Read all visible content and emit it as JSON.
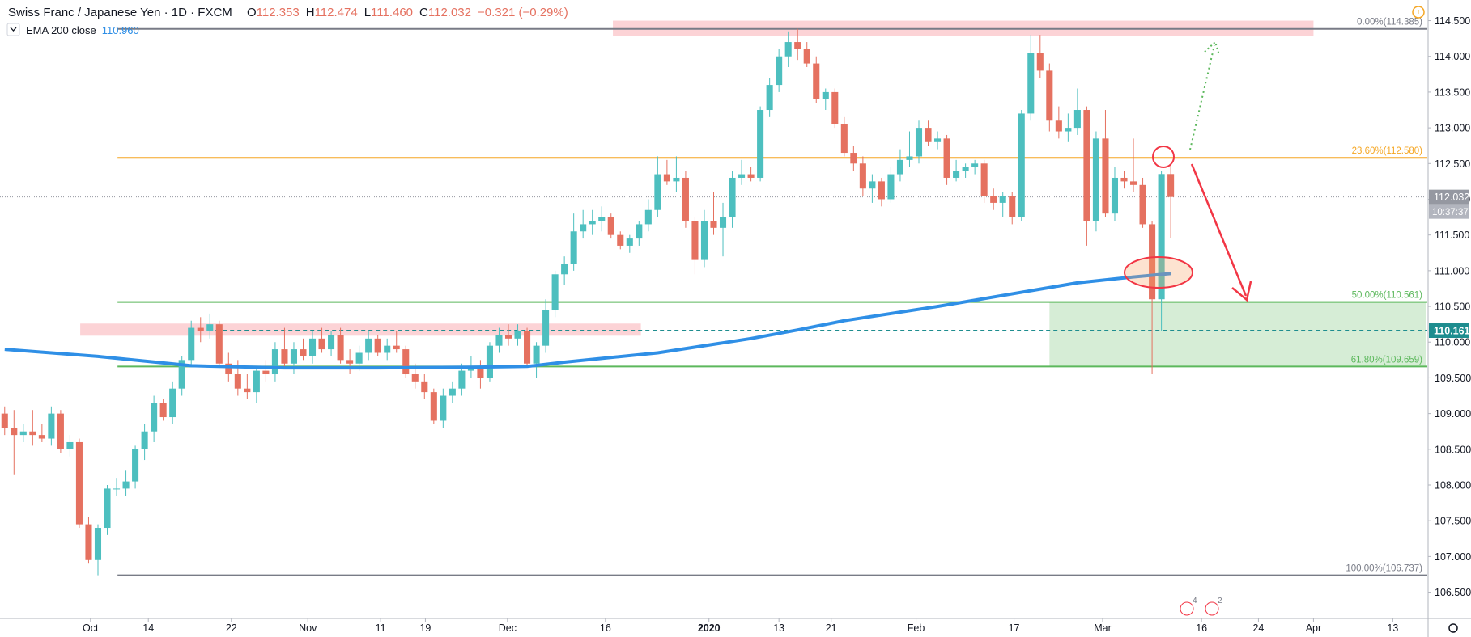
{
  "header": {
    "symbol": "Swiss Franc / Japanese Yen · 1D · FXCM",
    "ohlc": [
      {
        "label": "O",
        "value": "112.353"
      },
      {
        "label": "H",
        "value": "112.474"
      },
      {
        "label": "L",
        "value": "111.460"
      },
      {
        "label": "C",
        "value": "112.032"
      }
    ],
    "change": "−0.321 (−0.29%)",
    "indicator": {
      "name": "EMA 200 close",
      "value": "110.960"
    }
  },
  "event_badges": [
    "4",
    "2"
  ],
  "chart_data": {
    "type": "candlestick",
    "xlim": [
      -0.5,
      152.5
    ],
    "xticks": [
      {
        "value": 9.2,
        "label": "Oct"
      },
      {
        "value": 15.4,
        "label": "14"
      },
      {
        "value": 24.3,
        "label": "22"
      },
      {
        "value": 32.5,
        "label": "Nov"
      },
      {
        "value": 40.3,
        "label": "11"
      },
      {
        "value": 45.1,
        "label": "19"
      },
      {
        "value": 53.9,
        "label": "Dec"
      },
      {
        "value": 64.4,
        "label": "16"
      },
      {
        "value": 75.5,
        "label": "2020"
      },
      {
        "value": 83,
        "label": "13"
      },
      {
        "value": 88.6,
        "label": "21"
      },
      {
        "value": 97.7,
        "label": "Feb"
      },
      {
        "value": 108.2,
        "label": "17"
      },
      {
        "value": 117.7,
        "label": "Mar"
      },
      {
        "value": 128.3,
        "label": "16"
      },
      {
        "value": 134.4,
        "label": "24"
      },
      {
        "value": 140.3,
        "label": "Apr"
      },
      {
        "value": 148.8,
        "label": "13"
      }
    ],
    "ylim": [
      106.133,
      114.789
    ],
    "yticks": [
      {
        "value": 106.5,
        "label": "106.500"
      },
      {
        "value": 107,
        "label": "107.000"
      },
      {
        "value": 107.5,
        "label": "107.500"
      },
      {
        "value": 108,
        "label": "108.000"
      },
      {
        "value": 108.5,
        "label": "108.500"
      },
      {
        "value": 109,
        "label": "109.000"
      },
      {
        "value": 109.5,
        "label": "109.500"
      },
      {
        "value": 110,
        "label": "110.000"
      },
      {
        "value": 110.5,
        "label": "110.500"
      },
      {
        "value": 111,
        "label": "111.000"
      },
      {
        "value": 111.5,
        "label": "111.500"
      },
      {
        "value": 112,
        "label": "112.000"
      },
      {
        "value": 112.5,
        "label": "112.500"
      },
      {
        "value": 113,
        "label": "113.000"
      },
      {
        "value": 113.5,
        "label": "113.500"
      },
      {
        "value": 114,
        "label": "114.000"
      },
      {
        "value": 114.5,
        "label": "114.500"
      }
    ],
    "grid": false,
    "up_color": "#4dbfbf",
    "down_color": "#e57160",
    "open": [
      109.0,
      108.8,
      108.7,
      108.75,
      108.7,
      108.65,
      109.0,
      108.5,
      108.6,
      107.45,
      106.95,
      107.4,
      107.95,
      107.95,
      108.05,
      108.5,
      108.75,
      109.15,
      108.95,
      109.35,
      109.75,
      110.2,
      110.15,
      110.25,
      109.7,
      109.55,
      109.35,
      109.3,
      109.6,
      109.55,
      109.9,
      109.7,
      109.9,
      109.8,
      110.05,
      109.9,
      110.1,
      109.75,
      109.7,
      109.85,
      110.05,
      109.85,
      109.95,
      109.9,
      109.55,
      109.45,
      109.3,
      108.9,
      109.25,
      109.35,
      109.6,
      109.65,
      109.5,
      109.95,
      110.1,
      110.05,
      110.15,
      109.7,
      109.95,
      110.45,
      110.95,
      111.1,
      111.55,
      111.65,
      111.7,
      111.75,
      111.5,
      111.35,
      111.45,
      111.65,
      111.85,
      112.35,
      112.25,
      112.3,
      111.7,
      111.15,
      111.7,
      111.6,
      111.75,
      112.3,
      112.35,
      112.3,
      113.25,
      113.6,
      114.0,
      114.2,
      114.1,
      113.9,
      113.4,
      113.5,
      113.05,
      112.65,
      112.5,
      112.15,
      112.25,
      112.0,
      112.35,
      112.55,
      112.6,
      113.0,
      112.8,
      112.85,
      112.3,
      112.4,
      112.45,
      112.5,
      112.05,
      111.95,
      112.05,
      111.75,
      113.2,
      114.05,
      113.8,
      113.1,
      112.95,
      113.0,
      113.25,
      111.7,
      112.85,
      111.8,
      112.3,
      112.25,
      112.2,
      111.65,
      110.6,
      112.353
    ],
    "high": [
      109.1,
      109.05,
      108.85,
      109.05,
      108.85,
      109.1,
      109.05,
      108.7,
      108.65,
      107.55,
      107.45,
      108.0,
      108.1,
      108.2,
      108.55,
      108.85,
      109.25,
      109.2,
      109.45,
      109.8,
      110.3,
      110.35,
      110.4,
      110.3,
      109.85,
      109.75,
      109.55,
      109.65,
      109.75,
      110.0,
      110.2,
      110.0,
      110.05,
      110.15,
      110.2,
      110.15,
      110.2,
      109.9,
      109.95,
      110.15,
      110.1,
      110.05,
      110.15,
      109.95,
      109.7,
      109.55,
      109.35,
      109.35,
      109.45,
      109.7,
      109.8,
      109.75,
      110.0,
      110.2,
      110.25,
      110.25,
      110.2,
      110.0,
      110.6,
      111.0,
      111.2,
      111.8,
      111.85,
      111.85,
      111.9,
      111.8,
      111.55,
      111.5,
      111.7,
      112.0,
      112.6,
      112.55,
      112.6,
      112.4,
      111.75,
      111.85,
      112.1,
      111.95,
      112.4,
      112.55,
      112.45,
      113.3,
      113.7,
      114.1,
      114.35,
      114.385,
      114.2,
      114.0,
      113.55,
      113.55,
      113.15,
      112.75,
      112.6,
      112.35,
      112.3,
      112.45,
      112.7,
      112.95,
      113.1,
      113.1,
      112.95,
      112.9,
      112.55,
      112.5,
      112.55,
      112.55,
      112.15,
      112.1,
      112.1,
      113.25,
      114.3,
      114.3,
      113.9,
      113.3,
      113.2,
      113.55,
      113.3,
      112.95,
      113.25,
      112.45,
      112.4,
      112.85,
      112.3,
      111.7,
      112.4,
      112.474
    ],
    "low": [
      108.7,
      108.15,
      108.6,
      108.55,
      108.6,
      108.55,
      108.45,
      108.4,
      107.4,
      106.9,
      106.737,
      107.3,
      107.85,
      107.85,
      107.95,
      108.35,
      108.6,
      108.9,
      108.85,
      109.25,
      109.65,
      110.0,
      110.05,
      109.65,
      109.45,
      109.25,
      109.2,
      109.15,
      109.45,
      109.45,
      109.65,
      109.55,
      109.75,
      109.7,
      109.85,
      109.8,
      109.7,
      109.55,
      109.6,
      109.75,
      109.8,
      109.75,
      109.85,
      109.5,
      109.35,
      109.2,
      108.85,
      108.8,
      109.15,
      109.25,
      109.5,
      109.35,
      109.45,
      109.85,
      109.95,
      109.95,
      109.65,
      109.5,
      109.85,
      110.35,
      110.8,
      111.0,
      111.45,
      111.5,
      111.55,
      111.45,
      111.3,
      111.25,
      111.35,
      111.55,
      111.75,
      112.2,
      112.1,
      111.6,
      110.95,
      111.05,
      111.5,
      111.2,
      111.6,
      112.2,
      112.25,
      112.25,
      113.15,
      113.5,
      113.85,
      113.95,
      113.85,
      113.35,
      113.25,
      113.0,
      112.6,
      112.4,
      112.05,
      111.95,
      111.9,
      111.95,
      112.25,
      112.45,
      112.5,
      112.75,
      112.7,
      112.2,
      112.25,
      112.3,
      112.35,
      111.95,
      111.85,
      111.75,
      111.65,
      111.7,
      113.1,
      113.7,
      112.95,
      112.85,
      112.8,
      112.9,
      111.35,
      111.55,
      111.75,
      111.7,
      112.15,
      112.1,
      111.6,
      109.55,
      110.15,
      111.46
    ],
    "close": [
      108.8,
      108.7,
      108.75,
      108.7,
      108.65,
      109.0,
      108.5,
      108.6,
      107.45,
      106.95,
      107.4,
      107.95,
      107.95,
      108.05,
      108.5,
      108.75,
      109.15,
      108.95,
      109.35,
      109.75,
      110.2,
      110.15,
      110.25,
      109.7,
      109.55,
      109.35,
      109.3,
      109.6,
      109.55,
      109.9,
      109.7,
      109.9,
      109.8,
      110.05,
      109.9,
      110.1,
      109.75,
      109.7,
      109.85,
      110.05,
      109.85,
      109.95,
      109.9,
      109.55,
      109.45,
      109.3,
      108.9,
      109.25,
      109.35,
      109.6,
      109.65,
      109.5,
      109.95,
      110.1,
      110.05,
      110.15,
      109.7,
      109.95,
      110.45,
      110.95,
      111.1,
      111.55,
      111.65,
      111.7,
      111.75,
      111.5,
      111.35,
      111.45,
      111.65,
      111.85,
      112.35,
      112.25,
      112.3,
      111.7,
      111.15,
      111.7,
      111.6,
      111.75,
      112.3,
      112.35,
      112.3,
      113.25,
      113.6,
      114.0,
      114.2,
      114.1,
      113.9,
      113.4,
      113.5,
      113.05,
      112.65,
      112.5,
      112.15,
      112.25,
      112.0,
      112.35,
      112.55,
      112.6,
      113.0,
      112.8,
      112.85,
      112.3,
      112.4,
      112.45,
      112.5,
      112.05,
      111.95,
      112.05,
      111.75,
      113.2,
      114.05,
      113.8,
      113.1,
      112.95,
      113.0,
      113.25,
      111.7,
      112.85,
      111.8,
      112.3,
      112.25,
      112.2,
      111.65,
      110.6,
      112.353,
      112.032
    ],
    "ema": {
      "color": "#2f8fe6",
      "x": [
        0,
        10,
        20,
        30,
        40,
        50,
        56,
        60,
        70,
        80,
        85,
        90,
        100,
        110,
        115,
        120,
        125
      ],
      "values": [
        109.9,
        109.8,
        109.67,
        109.64,
        109.64,
        109.65,
        109.66,
        109.72,
        109.85,
        110.05,
        110.17,
        110.3,
        110.5,
        110.72,
        110.83,
        110.9,
        110.96
      ]
    },
    "fib": {
      "x_start": 12.1,
      "levels": [
        {
          "label": "0.00%(114.385)",
          "value": 114.385,
          "color": "#787b86"
        },
        {
          "label": "23.60%(112.580)",
          "value": 112.58,
          "color": "#f5a623"
        },
        {
          "label": "50.00%(110.561)",
          "value": 110.561,
          "color": "#5cb85c"
        },
        {
          "label": "61.80%(109.659)",
          "value": 109.659,
          "color": "#5cb85c"
        },
        {
          "label": "100.00%(106.737)",
          "value": 106.737,
          "color": "#787b86"
        }
      ]
    },
    "zones": [
      {
        "x": [
          65.2,
          140.3
        ],
        "y": [
          114.29,
          114.5
        ],
        "color": "rgba(242,54,69,0.22)"
      },
      {
        "x": [
          8.1,
          68.2
        ],
        "y": [
          110.09,
          110.26
        ],
        "color": "rgba(242,54,69,0.22)"
      },
      {
        "x": [
          112,
          152.4
        ],
        "y": [
          109.659,
          110.561
        ],
        "color": "rgba(92,184,92,0.25)"
      }
    ],
    "support": {
      "value": 110.161,
      "x_start": 22.6,
      "color": "#1e8d8f"
    },
    "last_price": 112.032,
    "countdown": "10:37:37"
  }
}
